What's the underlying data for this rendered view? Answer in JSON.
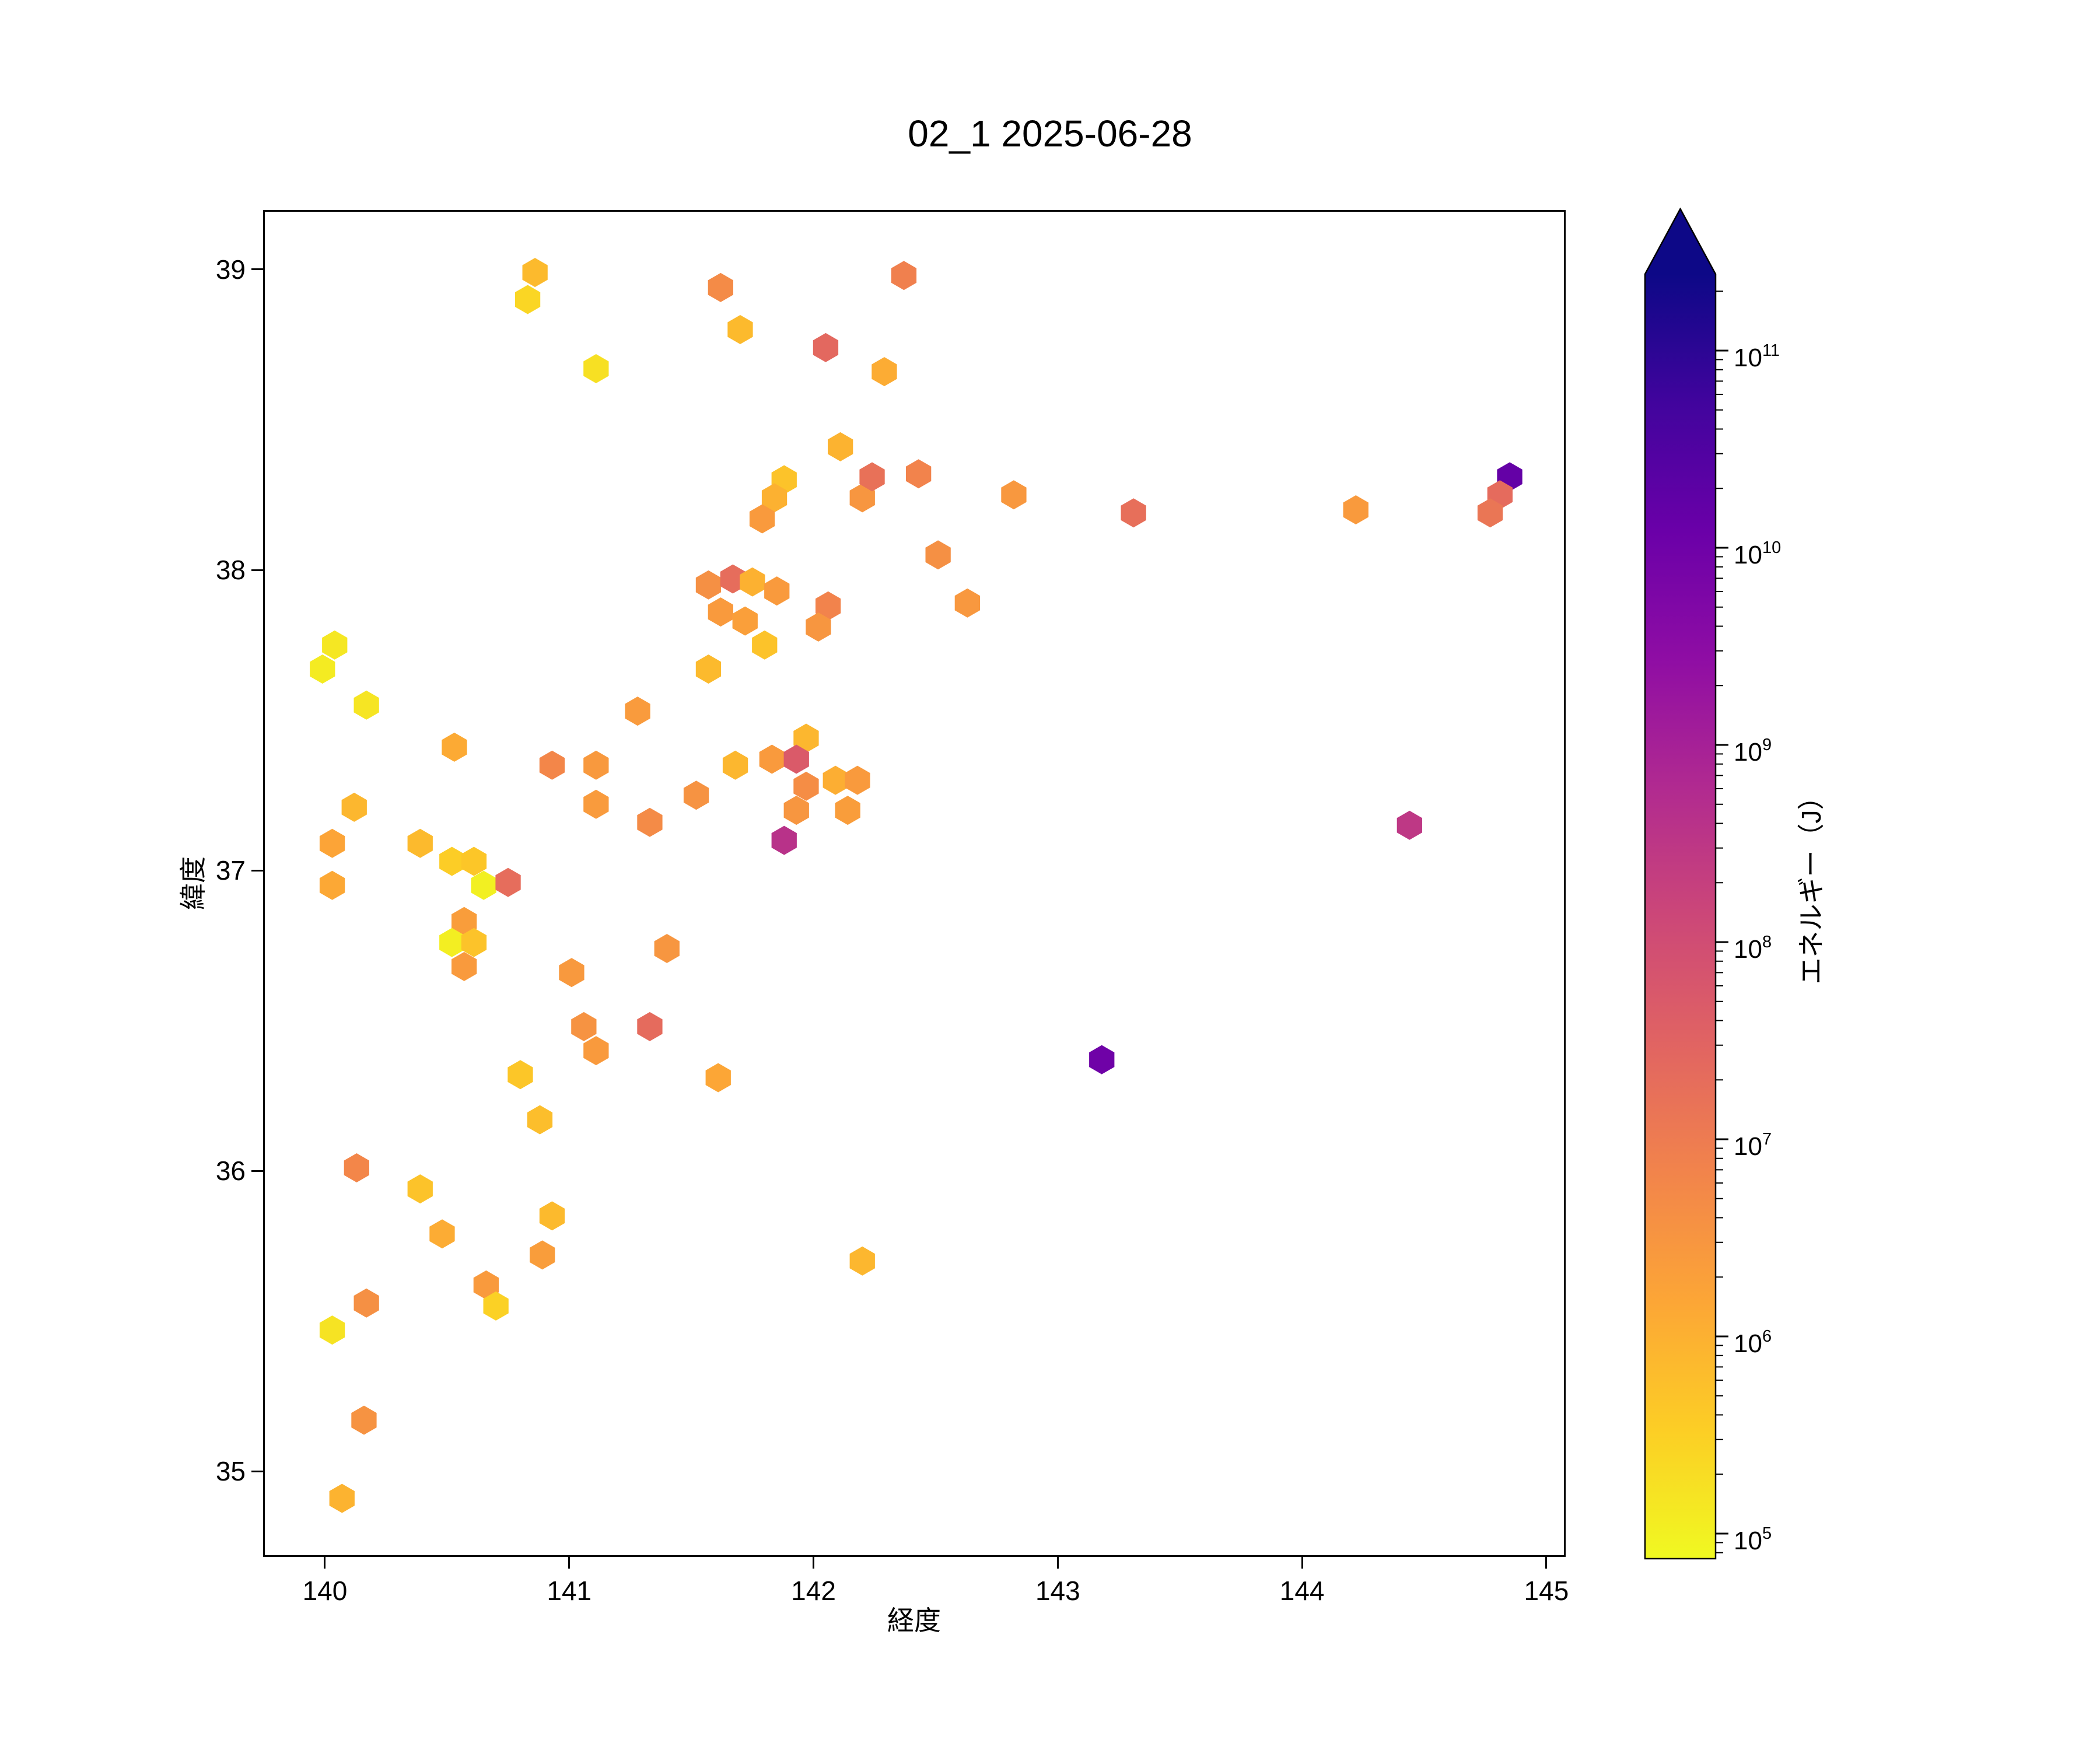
{
  "title": "02_1 2025-06-28",
  "axes": {
    "xlabel": "経度",
    "ylabel": "緯度",
    "xlim": [
      139.747,
      145.079
    ],
    "ylim": [
      34.715,
      39.198
    ],
    "xticks": [
      140,
      141,
      142,
      143,
      144,
      145
    ],
    "yticks": [
      35,
      36,
      37,
      38,
      39
    ],
    "spine_color": "#000000",
    "background": "#ffffff"
  },
  "colorbar": {
    "label": "エネルギー（J）",
    "tick_exponents": [
      5,
      6,
      7,
      8,
      9,
      10,
      11
    ],
    "extend": "max",
    "scale": "log",
    "vmin_exp": 4.87,
    "vmax_exp": 11.39,
    "cmap": "plasma_reversed",
    "plasma_stops": [
      [
        0.0,
        "#0d0887"
      ],
      [
        0.1,
        "#41049d"
      ],
      [
        0.2,
        "#6a00a8"
      ],
      [
        0.3,
        "#8f0da4"
      ],
      [
        0.4,
        "#b12a90"
      ],
      [
        0.5,
        "#cc4778"
      ],
      [
        0.6,
        "#e16462"
      ],
      [
        0.7,
        "#f2844b"
      ],
      [
        0.8,
        "#fca636"
      ],
      [
        0.9,
        "#fcce25"
      ],
      [
        1.0,
        "#f0f921"
      ]
    ]
  },
  "chart_data": {
    "type": "scatter",
    "marker": "hexagon",
    "title": "02_1 2025-06-28",
    "xlabel": "経度",
    "ylabel": "緯度",
    "color_label": "エネルギー（J）",
    "fields": [
      "lon",
      "lat",
      "energy_j"
    ],
    "points": [
      [
        140.86,
        38.99,
        700000.0
      ],
      [
        140.83,
        38.9,
        250000.0
      ],
      [
        141.62,
        38.94,
        5000000.0
      ],
      [
        141.7,
        38.8,
        700000.0
      ],
      [
        142.37,
        38.98,
        8000000.0
      ],
      [
        141.11,
        38.67,
        180000.0
      ],
      [
        142.05,
        38.74,
        25000000.0
      ],
      [
        142.29,
        38.66,
        1200000.0
      ],
      [
        142.11,
        38.41,
        900000.0
      ],
      [
        141.88,
        38.3,
        500000.0
      ],
      [
        141.84,
        38.24,
        1000000.0
      ],
      [
        141.79,
        38.17,
        2500000.0
      ],
      [
        142.2,
        38.24,
        3000000.0
      ],
      [
        142.24,
        38.31,
        16000000.0
      ],
      [
        142.43,
        38.32,
        7000000.0
      ],
      [
        142.82,
        38.25,
        2800000.0
      ],
      [
        143.31,
        38.19,
        18000000.0
      ],
      [
        142.51,
        38.05,
        4000000.0
      ],
      [
        144.22,
        38.2,
        2500000.0
      ],
      [
        144.85,
        38.31,
        15000000000.0
      ],
      [
        144.81,
        38.25,
        22000000.0
      ],
      [
        144.77,
        38.19,
        13000000.0
      ],
      [
        141.57,
        37.95,
        4000000.0
      ],
      [
        141.67,
        37.97,
        20000000.0
      ],
      [
        141.75,
        37.96,
        1000000.0
      ],
      [
        141.85,
        37.93,
        2500000.0
      ],
      [
        142.06,
        37.88,
        7000000.0
      ],
      [
        141.62,
        37.86,
        2500000.0
      ],
      [
        141.72,
        37.83,
        2000000.0
      ],
      [
        141.8,
        37.75,
        500000.0
      ],
      [
        141.57,
        37.67,
        700000.0
      ],
      [
        142.02,
        37.81,
        3000000.0
      ],
      [
        142.63,
        37.89,
        2800000.0
      ],
      [
        141.97,
        37.44,
        800000.0
      ],
      [
        141.83,
        37.37,
        2500000.0
      ],
      [
        141.93,
        37.37,
        50000000.0
      ],
      [
        141.97,
        37.28,
        4500000.0
      ],
      [
        141.93,
        37.2,
        3000000.0
      ],
      [
        141.88,
        37.1,
        400000000.0
      ],
      [
        141.68,
        37.35,
        800000.0
      ],
      [
        142.09,
        37.3,
        1100000.0
      ],
      [
        142.18,
        37.3,
        2500000.0
      ],
      [
        142.14,
        37.2,
        2200000.0
      ],
      [
        141.52,
        37.25,
        3500000.0
      ],
      [
        141.28,
        37.53,
        2400000.0
      ],
      [
        144.44,
        37.15,
        300000000.0
      ],
      [
        140.04,
        37.75,
        140000.0
      ],
      [
        139.99,
        37.67,
        120000.0
      ],
      [
        140.17,
        37.55,
        150000.0
      ],
      [
        140.53,
        37.41,
        1300000.0
      ],
      [
        140.93,
        37.35,
        6000000.0
      ],
      [
        141.11,
        37.35,
        2600000.0
      ],
      [
        141.11,
        37.22,
        2400000.0
      ],
      [
        141.33,
        37.16,
        5000000.0
      ],
      [
        140.12,
        37.21,
        800000.0
      ],
      [
        140.03,
        37.09,
        1600000.0
      ],
      [
        140.39,
        37.09,
        700000.0
      ],
      [
        140.52,
        37.03,
        350000.0
      ],
      [
        140.61,
        37.03,
        450000.0
      ],
      [
        140.65,
        36.95,
        100000.0
      ],
      [
        140.75,
        36.96,
        20000000.0
      ],
      [
        140.03,
        36.95,
        1400000.0
      ],
      [
        140.57,
        36.83,
        2200000.0
      ],
      [
        140.52,
        36.76,
        110000.0
      ],
      [
        140.61,
        36.76,
        500000.0
      ],
      [
        140.57,
        36.68,
        2500000.0
      ],
      [
        141.01,
        36.66,
        2600000.0
      ],
      [
        141.4,
        36.74,
        3000000.0
      ],
      [
        141.06,
        36.48,
        3500000.0
      ],
      [
        141.11,
        36.4,
        2500000.0
      ],
      [
        141.33,
        36.48,
        22000000.0
      ],
      [
        141.61,
        36.31,
        1500000.0
      ],
      [
        140.8,
        36.32,
        450000.0
      ],
      [
        140.88,
        36.17,
        600000.0
      ],
      [
        140.13,
        36.01,
        6000000.0
      ],
      [
        140.39,
        35.94,
        500000.0
      ],
      [
        140.48,
        35.79,
        1200000.0
      ],
      [
        140.93,
        35.85,
        700000.0
      ],
      [
        140.89,
        35.72,
        2200000.0
      ],
      [
        140.66,
        35.62,
        2500000.0
      ],
      [
        140.7,
        35.55,
        300000.0
      ],
      [
        140.17,
        35.56,
        4000000.0
      ],
      [
        140.03,
        35.47,
        160000.0
      ],
      [
        140.16,
        35.17,
        3500000.0
      ],
      [
        140.07,
        34.91,
        900000.0
      ],
      [
        142.2,
        35.7,
        800000.0
      ],
      [
        143.18,
        36.37,
        10000000000.0
      ]
    ]
  }
}
